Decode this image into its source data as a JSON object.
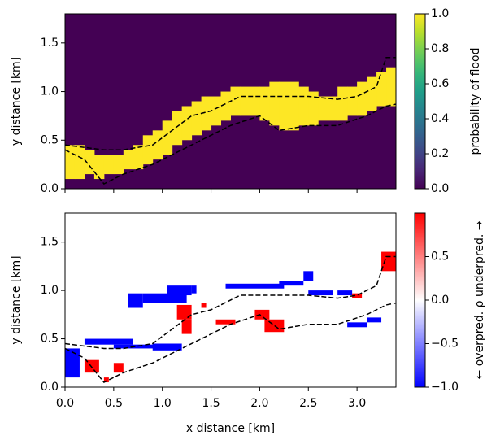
{
  "chart_data": [
    {
      "type": "heatmap",
      "ylabel": "y distance [km]",
      "xlim": [
        0,
        3.4
      ],
      "ylim": [
        0,
        1.8
      ],
      "xticks": [
        0,
        0.5,
        1,
        1.5,
        2,
        2.5,
        3
      ],
      "xtick_labels": false,
      "yticks": [
        {
          "value": 0,
          "label": "0.0"
        },
        {
          "value": 0.5,
          "label": "0.5"
        },
        {
          "value": 1,
          "label": "1.0"
        },
        {
          "value": 1.5,
          "label": "1.5"
        }
      ],
      "colormap": "viridis",
      "background": 0,
      "columns": {
        "value": 1,
        "x": [
          0.05,
          0.15,
          0.25,
          0.35,
          0.45,
          0.55,
          0.65,
          0.75,
          0.85,
          0.95,
          1.05,
          1.15,
          1.25,
          1.35,
          1.45,
          1.55,
          1.65,
          1.75,
          1.85,
          1.95,
          2.05,
          2.15,
          2.25,
          2.35,
          2.45,
          2.55,
          2.65,
          2.75,
          2.85,
          2.95,
          3.05,
          3.15,
          3.25,
          3.35
        ],
        "ylow": [
          0.1,
          0.1,
          0.15,
          0.1,
          0.15,
          0.15,
          0.2,
          0.2,
          0.25,
          0.3,
          0.35,
          0.45,
          0.5,
          0.55,
          0.6,
          0.65,
          0.7,
          0.75,
          0.75,
          0.75,
          0.7,
          0.65,
          0.6,
          0.6,
          0.65,
          0.65,
          0.7,
          0.7,
          0.7,
          0.75,
          0.75,
          0.8,
          0.85,
          0.85
        ],
        "yhigh": [
          0.45,
          0.45,
          0.4,
          0.35,
          0.35,
          0.35,
          0.4,
          0.45,
          0.55,
          0.6,
          0.7,
          0.8,
          0.85,
          0.9,
          0.95,
          0.95,
          1.0,
          1.05,
          1.05,
          1.05,
          1.05,
          1.1,
          1.1,
          1.1,
          1.05,
          1.0,
          0.95,
          0.95,
          1.05,
          1.05,
          1.1,
          1.15,
          1.2,
          1.25
        ]
      },
      "boundaries": [
        {
          "x": [
            0,
            0.4,
            0.6,
            0.9,
            1.1,
            1.3,
            1.5,
            1.8,
            2.3,
            2.5,
            2.8,
            3.0,
            3.2,
            3.3,
            3.4
          ],
          "y": [
            0.45,
            0.4,
            0.4,
            0.45,
            0.6,
            0.75,
            0.8,
            0.95,
            0.95,
            0.95,
            0.92,
            0.95,
            1.05,
            1.35,
            1.35
          ]
        },
        {
          "x": [
            0,
            0.2,
            0.4,
            0.6,
            0.9,
            1.1,
            1.4,
            1.7,
            2.0,
            2.2,
            2.5,
            2.8,
            3.1,
            3.3,
            3.4
          ],
          "y": [
            0.4,
            0.3,
            0.05,
            0.15,
            0.25,
            0.35,
            0.5,
            0.65,
            0.75,
            0.6,
            0.65,
            0.65,
            0.75,
            0.85,
            0.87
          ]
        }
      ],
      "colorbar": {
        "label": "probability of flood",
        "lim": [
          0,
          1
        ],
        "ticks": [
          {
            "value": 0,
            "label": "0.0"
          },
          {
            "value": 0.2,
            "label": "0.2"
          },
          {
            "value": 0.4,
            "label": "0.4"
          },
          {
            "value": 0.6,
            "label": "0.6"
          },
          {
            "value": 0.8,
            "label": "0.8"
          },
          {
            "value": 1,
            "label": "1.0"
          }
        ]
      }
    },
    {
      "type": "heatmap",
      "xlabel": "x distance [km]",
      "ylabel": "y distance [km]",
      "xlim": [
        0,
        3.4
      ],
      "ylim": [
        0,
        1.8
      ],
      "xticks": [
        {
          "value": 0,
          "label": "0.0"
        },
        {
          "value": 0.5,
          "label": "0.5"
        },
        {
          "value": 1,
          "label": "1.0"
        },
        {
          "value": 1.5,
          "label": "1.5"
        },
        {
          "value": 2,
          "label": "2.0"
        },
        {
          "value": 2.5,
          "label": "2.5"
        },
        {
          "value": 3,
          "label": "3.0"
        }
      ],
      "xtick_labels": true,
      "yticks": [
        {
          "value": 0,
          "label": "0.0"
        },
        {
          "value": 0.5,
          "label": "0.5"
        },
        {
          "value": 1,
          "label": "1.0"
        },
        {
          "value": 1.5,
          "label": "1.5"
        }
      ],
      "colormap": "bwr",
      "background": 0,
      "rects": [
        {
          "x": [
            0,
            0.15
          ],
          "y": [
            0.1,
            0.4
          ],
          "value": -1
        },
        {
          "x": [
            0.2,
            0.7
          ],
          "y": [
            0.44,
            0.5
          ],
          "value": -1
        },
        {
          "x": [
            0.5,
            0.95
          ],
          "y": [
            0.4,
            0.44
          ],
          "value": -1
        },
        {
          "x": [
            0.9,
            1.2
          ],
          "y": [
            0.38,
            0.45
          ],
          "value": -1
        },
        {
          "x": [
            0.65,
            0.8
          ],
          "y": [
            0.82,
            0.97
          ],
          "value": -1
        },
        {
          "x": [
            0.8,
            1.25
          ],
          "y": [
            0.87,
            0.97
          ],
          "value": -1
        },
        {
          "x": [
            1.05,
            1.3
          ],
          "y": [
            0.95,
            1.05
          ],
          "value": -1
        },
        {
          "x": [
            1.3,
            1.35
          ],
          "y": [
            0.97,
            1.05
          ],
          "value": -1
        },
        {
          "x": [
            1.65,
            2.25
          ],
          "y": [
            1.02,
            1.07
          ],
          "value": -1
        },
        {
          "x": [
            2.2,
            2.45
          ],
          "y": [
            1.05,
            1.1
          ],
          "value": -1
        },
        {
          "x": [
            2.45,
            2.55
          ],
          "y": [
            1.1,
            1.2
          ],
          "value": -1
        },
        {
          "x": [
            2.5,
            2.75
          ],
          "y": [
            0.95,
            1.0
          ],
          "value": -1
        },
        {
          "x": [
            2.8,
            2.95
          ],
          "y": [
            0.95,
            1.0
          ],
          "value": -1
        },
        {
          "x": [
            2.9,
            3.1
          ],
          "y": [
            0.62,
            0.67
          ],
          "value": -1
        },
        {
          "x": [
            3.1,
            3.25
          ],
          "y": [
            0.67,
            0.72
          ],
          "value": -1
        },
        {
          "x": [
            0.2,
            0.35
          ],
          "y": [
            0.15,
            0.28
          ],
          "value": 1
        },
        {
          "x": [
            0.4,
            0.45
          ],
          "y": [
            0.05,
            0.1
          ],
          "value": 1
        },
        {
          "x": [
            0.5,
            0.6
          ],
          "y": [
            0.15,
            0.25
          ],
          "value": 1
        },
        {
          "x": [
            1.15,
            1.3
          ],
          "y": [
            0.7,
            0.85
          ],
          "value": 1
        },
        {
          "x": [
            1.2,
            1.3
          ],
          "y": [
            0.55,
            0.7
          ],
          "value": 1
        },
        {
          "x": [
            1.4,
            1.45
          ],
          "y": [
            0.82,
            0.87
          ],
          "value": 1
        },
        {
          "x": [
            1.55,
            1.75
          ],
          "y": [
            0.65,
            0.7
          ],
          "value": 1
        },
        {
          "x": [
            1.95,
            2.1
          ],
          "y": [
            0.7,
            0.8
          ],
          "value": 1
        },
        {
          "x": [
            2.05,
            2.25
          ],
          "y": [
            0.57,
            0.7
          ],
          "value": 1
        },
        {
          "x": [
            2.95,
            3.05
          ],
          "y": [
            0.92,
            0.97
          ],
          "value": 1
        },
        {
          "x": [
            3.25,
            3.4
          ],
          "y": [
            1.2,
            1.4
          ],
          "value": 1
        }
      ],
      "boundaries": [
        {
          "x": [
            0,
            0.4,
            0.6,
            0.9,
            1.1,
            1.3,
            1.5,
            1.8,
            2.3,
            2.5,
            2.8,
            3.0,
            3.2,
            3.3,
            3.4
          ],
          "y": [
            0.45,
            0.4,
            0.4,
            0.45,
            0.6,
            0.75,
            0.8,
            0.95,
            0.95,
            0.95,
            0.92,
            0.95,
            1.05,
            1.35,
            1.35
          ]
        },
        {
          "x": [
            0,
            0.2,
            0.4,
            0.6,
            0.9,
            1.1,
            1.4,
            1.7,
            2.0,
            2.2,
            2.5,
            2.8,
            3.1,
            3.3,
            3.4
          ],
          "y": [
            0.4,
            0.3,
            0.05,
            0.15,
            0.25,
            0.35,
            0.5,
            0.65,
            0.75,
            0.6,
            0.65,
            0.65,
            0.75,
            0.85,
            0.87
          ]
        }
      ],
      "colorbar": {
        "label": "← overpred.   ρ   underpred. →",
        "lim": [
          -1,
          1
        ],
        "ticks": [
          {
            "value": -1,
            "label": "−1.0"
          },
          {
            "value": -0.5,
            "label": "−0.5"
          },
          {
            "value": 0,
            "label": "0.0"
          },
          {
            "value": 0.5,
            "label": "0.5"
          }
        ]
      }
    }
  ]
}
